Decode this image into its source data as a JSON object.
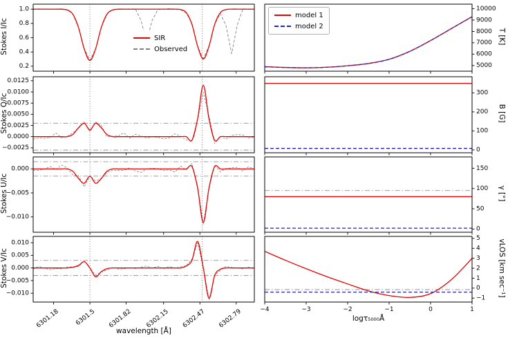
{
  "chart_data": {
    "type": "line",
    "colors": {
      "sir": "#e60000",
      "observed": "#808080",
      "model1": "#e60000",
      "model2": "#2020d0",
      "threshold": "#909090",
      "vline": "#606060"
    },
    "left_column": {
      "xlabel": "wavelength [Å]",
      "xlim": [
        6301.0,
        6302.95
      ],
      "rotate_xticks": true,
      "wave_start": 6301.0,
      "wave_step": 0.05,
      "wave_n": 40,
      "xticks": [
        6301.18,
        6301.5,
        6301.82,
        6302.15,
        6302.47,
        6302.79
      ],
      "xtick_labels": [
        "6301.18",
        "6301.5",
        "6301.82",
        "6302.15",
        "6302.47",
        "6302.79"
      ],
      "vlines": [
        6301.5,
        6302.49
      ],
      "panels": [
        {
          "id": "stokes-i",
          "ylabel": "Stokes I/Ic",
          "ylim": [
            0.13,
            1.07
          ],
          "yticks": [
            0.2,
            0.4,
            0.6,
            0.8,
            1.0
          ],
          "ytick_labels": [
            "0.2",
            "0.4",
            "0.6",
            "0.8",
            "1.0"
          ],
          "hlines": [],
          "legend": {
            "items": [
              {
                "label": "SIR"
              },
              {
                "label": "Observed"
              }
            ]
          },
          "series": [
            {
              "id": "observed",
              "label": "Observed",
              "color": "observed",
              "dash": [
                4,
                2.5
              ],
              "width": 0.9,
              "noise": 0.007,
              "seed": 1,
              "y": [
                1,
                1,
                1,
                1,
                1,
                0.999,
                0.988,
                0.93,
                0.74,
                0.45,
                0.29,
                0.44,
                0.74,
                0.93,
                0.99,
                1,
                1,
                1,
                1,
                0.84,
                0.55,
                0.84,
                1,
                1,
                1,
                1,
                0.99,
                0.95,
                0.79,
                0.48,
                0.31,
                0.48,
                0.79,
                0.94,
                0.77,
                0.38,
                0.78,
                1,
                1,
                1
              ]
            },
            {
              "id": "sir",
              "label": "SIR",
              "color": "sir",
              "dash": [],
              "width": 1.3,
              "smooth": true,
              "y": [
                1,
                1,
                1,
                1,
                1,
                0.999,
                0.988,
                0.928,
                0.741,
                0.442,
                0.28,
                0.442,
                0.741,
                0.928,
                0.988,
                0.999,
                1,
                1,
                1,
                1,
                1,
                1,
                1,
                1,
                1,
                1,
                0.994,
                0.951,
                0.786,
                0.479,
                0.3,
                0.479,
                0.786,
                0.951,
                0.994,
                1,
                1,
                1,
                1,
                1
              ]
            }
          ]
        },
        {
          "id": "stokes-q",
          "ylabel": "Stokes Q/Ic",
          "ylim": [
            -0.0036,
            0.0134
          ],
          "yticks": [
            -0.0025,
            0.0,
            0.0025,
            0.005,
            0.0075,
            0.01,
            0.0125
          ],
          "ytick_labels": [
            "−0.0025",
            "0.0000",
            "0.0025",
            "0.0050",
            "0.0075",
            "0.0100",
            "0.0125"
          ],
          "hlines": [
            0.003,
            -0.003
          ],
          "series": [
            {
              "id": "observed",
              "color": "observed",
              "dash": [
                3,
                2
              ],
              "width": 0.8,
              "noise": 0.0006,
              "seed": 2,
              "y": [
                0,
                0.0002,
                -0.0002,
                0,
                0.0003,
                -0.0003,
                0,
                0.0008,
                0.0018,
                0.0032,
                0.0012,
                0.0028,
                0.0022,
                0.0003,
                -0.0002,
                0,
                0.0003,
                -0.0003,
                0,
                0.0002,
                -0.0004,
                0,
                0.0003,
                0,
                -0.0002,
                0.0002,
                0,
                -0.0003,
                -0.001,
                0.0035,
                0.0105,
                0.0045,
                -0.001,
                0.0002,
                -0.0002,
                0,
                0.0002,
                0,
                -0.0003,
                0
              ]
            },
            {
              "id": "sir",
              "color": "sir",
              "dash": [],
              "width": 1.3,
              "smooth": true,
              "y": [
                0,
                0,
                0,
                0,
                0,
                0,
                0,
                0.0005,
                0.002,
                0.003,
                0.0015,
                0.003,
                0.002,
                0.0005,
                0,
                0,
                0,
                0,
                0,
                0,
                0,
                0,
                0,
                0,
                0,
                0,
                0,
                0,
                -0.0008,
                0.004,
                0.0115,
                0.004,
                -0.0008,
                0,
                0,
                0,
                0,
                0,
                0,
                0
              ]
            }
          ]
        },
        {
          "id": "stokes-u",
          "ylabel": "Stokes U/Ic",
          "ylim": [
            -0.0132,
            0.0025
          ],
          "yticks": [
            0.0,
            -0.005,
            -0.01
          ],
          "ytick_labels": [
            "0.000",
            "−0.005",
            "−0.010"
          ],
          "hlines": [
            0.0015,
            -0.0015
          ],
          "series": [
            {
              "id": "observed",
              "color": "observed",
              "dash": [
                3,
                2
              ],
              "width": 0.8,
              "noise": 0.0006,
              "seed": 3,
              "y": [
                0,
                -0.0002,
                0.0002,
                0,
                -0.0003,
                0.0003,
                0,
                -0.0008,
                -0.0018,
                -0.0032,
                -0.0012,
                -0.0028,
                -0.0022,
                -0.0003,
                0.0002,
                0,
                -0.0003,
                0.0003,
                0,
                -0.0002,
                0.0004,
                0,
                -0.0003,
                0,
                0.0002,
                -0.0002,
                0,
                0.0003,
                0.0008,
                -0.0035,
                -0.0118,
                -0.0045,
                0.0008,
                -0.0002,
                0.0002,
                0,
                -0.0002,
                0,
                0.0003,
                0
              ]
            },
            {
              "id": "sir",
              "color": "sir",
              "dash": [],
              "width": 1.3,
              "smooth": true,
              "y": [
                0,
                0,
                0,
                0,
                0,
                0,
                0,
                -0.0005,
                -0.002,
                -0.003,
                -0.0015,
                -0.003,
                -0.002,
                -0.0005,
                0,
                0,
                0,
                0,
                0,
                0,
                0,
                0,
                0,
                0,
                0,
                0,
                0,
                0,
                0.0005,
                -0.004,
                -0.0112,
                -0.004,
                0.0005,
                0,
                0,
                0,
                0,
                0,
                0,
                0
              ]
            }
          ]
        },
        {
          "id": "stokes-v",
          "ylabel": "Stokes V/Ic",
          "ylim": [
            -0.0135,
            0.0125
          ],
          "yticks": [
            0.01,
            0.005,
            0.0,
            -0.005,
            -0.01
          ],
          "ytick_labels": [
            "0.010",
            "0.005",
            "0.000",
            "−0.005",
            "−0.010"
          ],
          "hlines": [
            0.003,
            -0.003
          ],
          "series": [
            {
              "id": "observed",
              "color": "observed",
              "dash": [
                3,
                2
              ],
              "width": 0.8,
              "noise": 0.0007,
              "seed": 4,
              "y": [
                0,
                0.0002,
                -0.0002,
                0,
                0.0003,
                0,
                -0.0002,
                0.0005,
                0.0012,
                0.0028,
                -0.0002,
                -0.0032,
                -0.0018,
                -0.0002,
                0.0003,
                -0.0002,
                0,
                0.0002,
                0,
                -0.0003,
                0.0004,
                0,
                0,
                -0.0002,
                0.0002,
                0,
                -0.0002,
                0.001,
                0.0035,
                0.0098,
                0.0005,
                -0.0125,
                -0.0035,
                -0.0003,
                0.0002,
                0,
                -0.0003,
                0,
                0.0002,
                0
              ]
            },
            {
              "id": "sir",
              "color": "sir",
              "dash": [],
              "width": 1.3,
              "smooth": true,
              "y": [
                0,
                0,
                0,
                0,
                0,
                0,
                0,
                0.0003,
                0.001,
                0.0025,
                0,
                -0.0035,
                -0.0015,
                -0.0003,
                0,
                0,
                0,
                0,
                0,
                0,
                0,
                0,
                0,
                0,
                0,
                0,
                0,
                0.0008,
                0.003,
                0.0105,
                0,
                -0.012,
                -0.003,
                -0.0005,
                0,
                0,
                0,
                0,
                0,
                0
              ]
            }
          ]
        }
      ]
    },
    "right_column": {
      "xlabel": "logτ₅₀₀₀Å",
      "xlim": [
        -4,
        1
      ],
      "rotate_xticks": false,
      "xticks": [
        -4,
        -3,
        -2,
        -1,
        0,
        1
      ],
      "xtick_labels": [
        "−4",
        "−3",
        "−2",
        "−1",
        "0",
        "1"
      ],
      "vlines": [],
      "x_samples": [
        -4,
        -3.5,
        -3,
        -2.5,
        -2,
        -1.5,
        -1,
        -0.5,
        0,
        0.5,
        1
      ],
      "panels": [
        {
          "id": "temperature",
          "ylabel": "T [K]",
          "ylim": [
            4500,
            10400
          ],
          "yticks": [
            5000,
            6000,
            7000,
            8000,
            9000,
            10000
          ],
          "ytick_labels": [
            "5000",
            "6000",
            "7000",
            "8000",
            "9000",
            "10000"
          ],
          "hlines": [],
          "legend": {
            "items": [
              {
                "label": "model 1"
              },
              {
                "label": "model 2"
              }
            ]
          },
          "series": [
            {
              "id": "model1",
              "label": "model 1",
              "color": "model1",
              "dash": [],
              "width": 1.3,
              "smooth": true,
              "y": [
                4900,
                4830,
                4800,
                4850,
                4980,
                5180,
                5550,
                6250,
                7200,
                8250,
                9300
              ]
            },
            {
              "id": "model2",
              "label": "model 2",
              "color": "model2",
              "dash": [
                5,
                3
              ],
              "width": 1.3,
              "smooth": true,
              "y": [
                4890,
                4822,
                4795,
                4846,
                4976,
                5176,
                5546,
                6246,
                7196,
                8246,
                9294
              ]
            }
          ]
        },
        {
          "id": "magnetic-field",
          "ylabel": "B [G]",
          "ylim": [
            -15,
            385
          ],
          "yticks": [
            0,
            100,
            200,
            300
          ],
          "ytick_labels": [
            "0",
            "100",
            "200",
            "300"
          ],
          "hlines": [],
          "series": [
            {
              "id": "model1",
              "color": "model1",
              "dash": [],
              "width": 1.3,
              "x": [
                -4,
                1
              ],
              "y": [
                350,
                350
              ]
            },
            {
              "id": "model2",
              "color": "model2",
              "dash": [
                5,
                3
              ],
              "width": 1.3,
              "x": [
                -4,
                1
              ],
              "y": [
                8,
                8
              ]
            }
          ]
        },
        {
          "id": "inclination",
          "ylabel": "γ [°]",
          "ylim": [
            -8,
            178
          ],
          "yticks": [
            0,
            50,
            100,
            150
          ],
          "ytick_labels": [
            "0",
            "50",
            "100",
            "150"
          ],
          "hlines": [
            95
          ],
          "series": [
            {
              "id": "model1",
              "color": "model1",
              "dash": [],
              "width": 1.3,
              "x": [
                -4,
                1
              ],
              "y": [
                80,
                80
              ]
            },
            {
              "id": "model2",
              "color": "model2",
              "dash": [
                5,
                3
              ],
              "width": 1.3,
              "x": [
                -4,
                1
              ],
              "y": [
                2,
                2
              ]
            }
          ]
        },
        {
          "id": "velocity",
          "ylabel": "vLOS [km sec⁻¹]",
          "ylim": [
            -1.4,
            5.2
          ],
          "yticks": [
            -1,
            0,
            1,
            2,
            3,
            4,
            5
          ],
          "ytick_labels": [
            "−1",
            "0",
            "1",
            "2",
            "3",
            "4",
            "5"
          ],
          "hlines": [
            -0.15
          ],
          "series": [
            {
              "id": "model1",
              "color": "model1",
              "dash": [],
              "width": 1.3,
              "smooth": true,
              "y": [
                3.7,
                2.8,
                1.95,
                1.15,
                0.42,
                -0.28,
                -0.75,
                -0.93,
                -0.55,
                0.85,
                3.0
              ]
            },
            {
              "id": "model2",
              "color": "model2",
              "dash": [
                5,
                3
              ],
              "width": 1.3,
              "x": [
                -4,
                1
              ],
              "y": [
                -0.4,
                -0.4
              ]
            }
          ]
        }
      ]
    }
  }
}
